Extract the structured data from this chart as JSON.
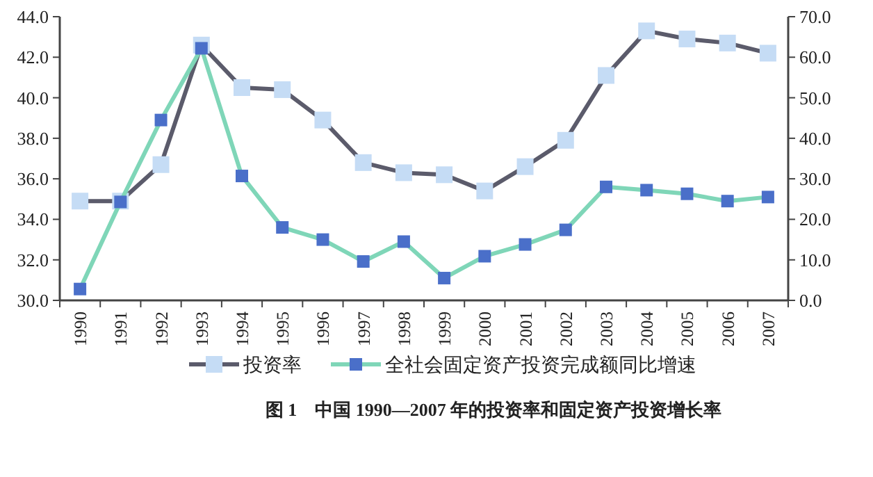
{
  "chart_data": {
    "type": "line",
    "title": "图 1　中国 1990—2007 年的投资率和固定资产投资增长率",
    "categories": [
      "1990",
      "1991",
      "1992",
      "1993",
      "1994",
      "1995",
      "1996",
      "1997",
      "1998",
      "1999",
      "2000",
      "2001",
      "2002",
      "2003",
      "2004",
      "2005",
      "2006",
      "2007"
    ],
    "series": [
      {
        "name": "投资率",
        "color": "#5b5b6b",
        "values": [
          34.9,
          34.9,
          36.7,
          42.6,
          40.5,
          40.4,
          38.9,
          36.8,
          36.3,
          36.2,
          35.4,
          36.6,
          37.9,
          41.1,
          43.3,
          42.9,
          42.7,
          42.2
        ]
      },
      {
        "name": "全社会固定资产投资完成额同比增速",
        "color": "#7fd6b8",
        "axis": "y2",
        "values": [
          2.8,
          24.3,
          44.5,
          62.2,
          30.7,
          18.0,
          15.0,
          9.6,
          14.5,
          5.5,
          10.9,
          13.8,
          17.4,
          28.0,
          27.2,
          26.3,
          24.5,
          25.5
        ]
      }
    ],
    "ylim": [
      30,
      44
    ],
    "yticks": [
      {
        "value": 30,
        "label": "30.0"
      },
      {
        "value": 32,
        "label": "32.0"
      },
      {
        "value": 34,
        "label": "34.0"
      },
      {
        "value": 36,
        "label": "36.0"
      },
      {
        "value": 38,
        "label": "38.0"
      },
      {
        "value": 40,
        "label": "40.0"
      },
      {
        "value": 42,
        "label": "42.0"
      },
      {
        "value": 44,
        "label": "44.0"
      }
    ],
    "y2lim": [
      0,
      70
    ],
    "y2ticks": [
      {
        "value": 0,
        "label": "0.0"
      },
      {
        "value": 10,
        "label": "10.0"
      },
      {
        "value": 20,
        "label": "20.0"
      },
      {
        "value": 30,
        "label": "30.0"
      },
      {
        "value": 40,
        "label": "40.0"
      },
      {
        "value": 50,
        "label": "50.0"
      },
      {
        "value": 60,
        "label": "60.0"
      },
      {
        "value": 70,
        "label": "70.0"
      }
    ],
    "marker": "square",
    "legend": "bottom",
    "grid": false
  }
}
